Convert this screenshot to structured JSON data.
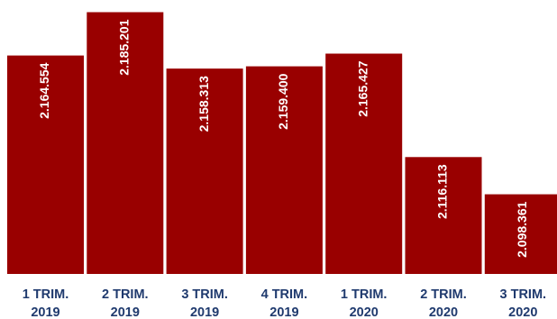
{
  "chart_data": {
    "type": "bar",
    "categories": [
      [
        "1 TRIM.",
        "2019"
      ],
      [
        "2 TRIM.",
        "2019"
      ],
      [
        "3 TRIM.",
        "2019"
      ],
      [
        "4 TRIM.",
        "2019"
      ],
      [
        "1 TRIM.",
        "2020"
      ],
      [
        "2 TRIM.",
        "2020"
      ],
      [
        "3 TRIM.",
        "2020"
      ]
    ],
    "values": [
      2164554,
      2185201,
      2158313,
      2159400,
      2165427,
      2116113,
      2098361
    ],
    "data_labels": [
      "2.164.554",
      "2.185.201",
      "2.158.313",
      "2.159.400",
      "2.165.427",
      "2.116.113",
      "2.098.361"
    ],
    "title": "",
    "xlabel": "",
    "ylabel": "",
    "grid": false,
    "legend": "none",
    "data_label_orientation": "vertical",
    "colors": {
      "bar": "#990000",
      "value_text": "#ffffff",
      "category_text": "#1f3a6e"
    }
  }
}
